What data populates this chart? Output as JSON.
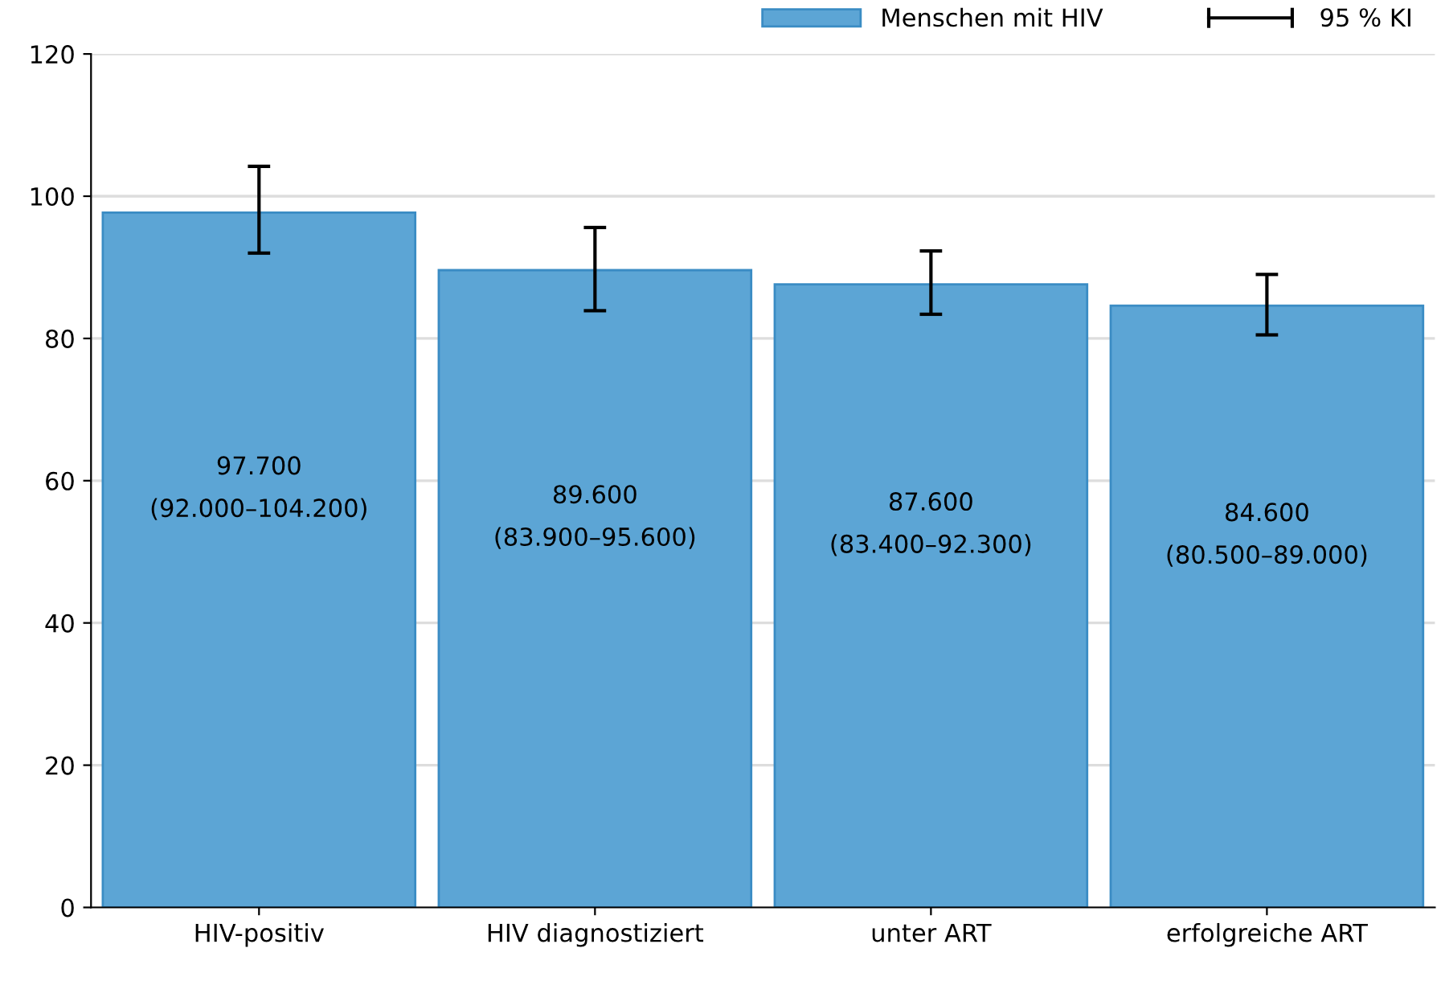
{
  "chart_data": {
    "type": "bar",
    "categories": [
      "HIV-positiv",
      "HIV diagnostiziert",
      "unter ART",
      "erfolgreiche ART"
    ],
    "series": [
      {
        "name": "Menschen mit HIV",
        "color": "#5ca5d5",
        "values": [
          97.7,
          89.6,
          87.6,
          84.6
        ],
        "errors": [
          [
            92.0,
            104.2
          ],
          [
            83.9,
            95.6
          ],
          [
            83.4,
            92.3
          ],
          [
            80.5,
            89.0
          ]
        ],
        "value_labels": [
          "97.700\n(92.000–104.200)",
          "89.600\n(83.900–95.600)",
          "87.600\n(83.400–92.300)",
          "84.600\n(80.500–89.000)"
        ]
      }
    ],
    "ylim": [
      0,
      120
    ],
    "yticks": [
      0,
      20,
      40,
      60,
      80,
      100,
      120
    ],
    "grid": "y",
    "legend": "top right",
    "annotations": [
      "95 % KI"
    ]
  }
}
